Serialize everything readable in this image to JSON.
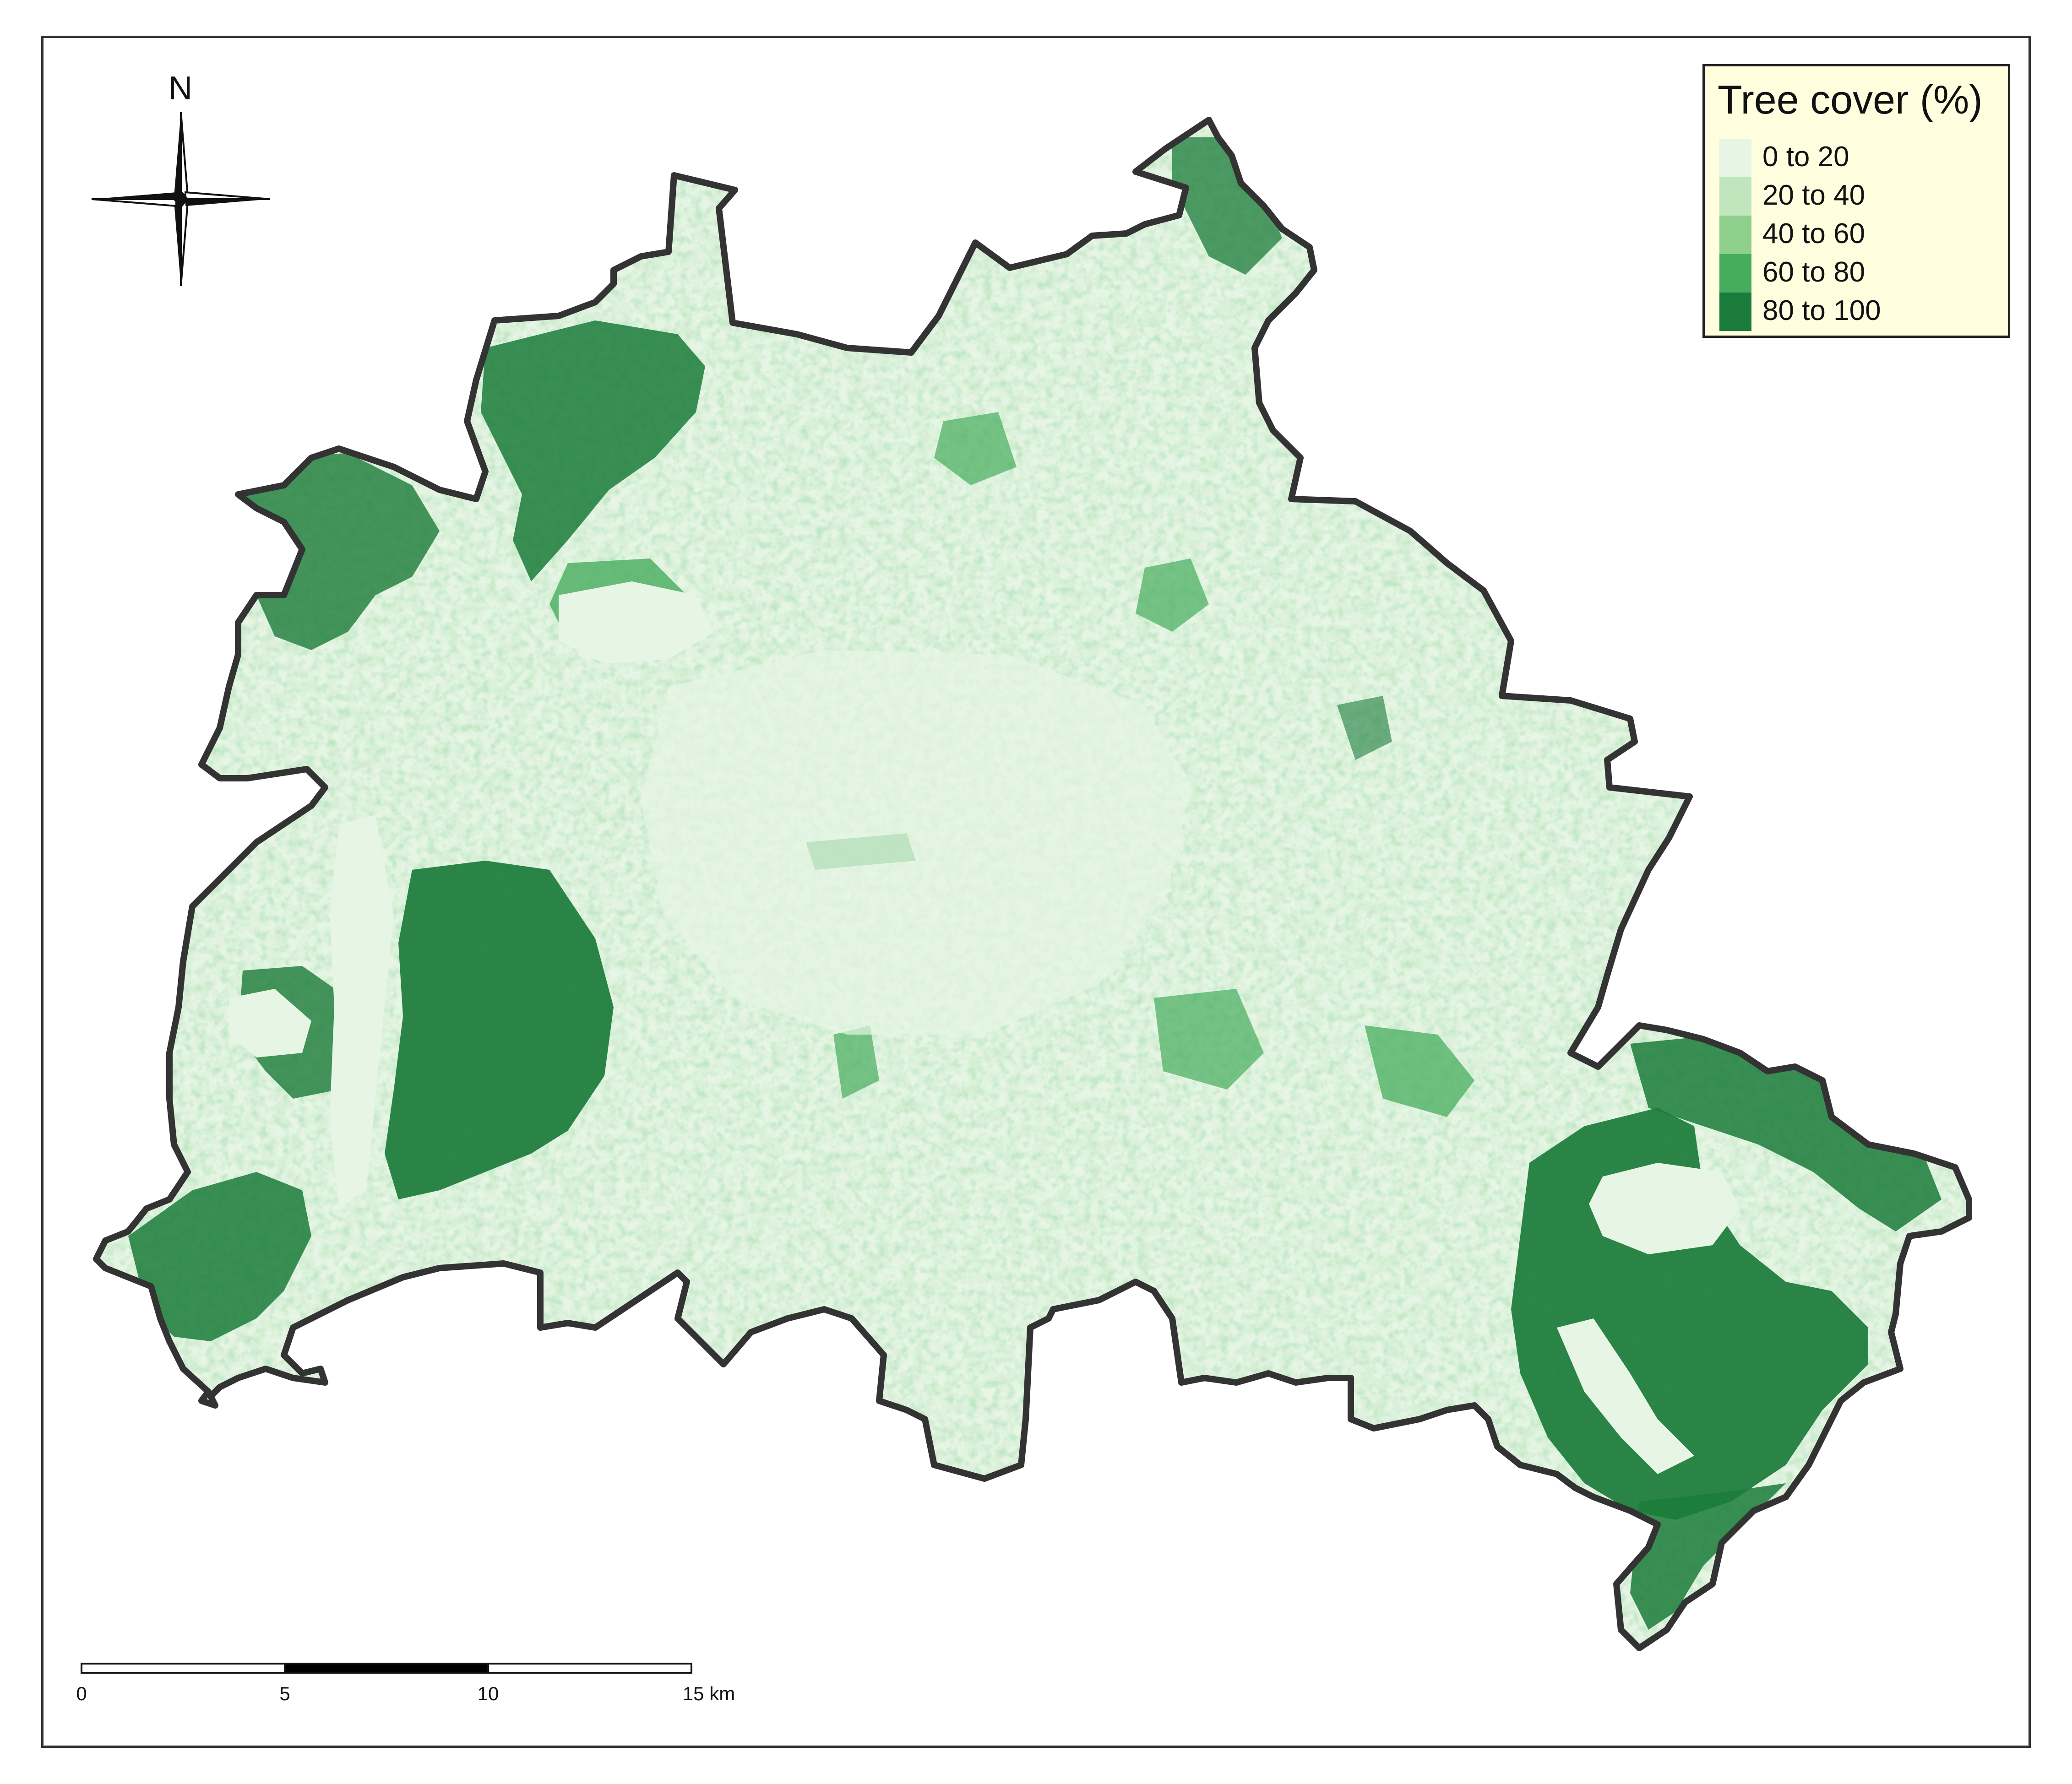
{
  "map": {
    "legend": {
      "title": "Tree cover (%)",
      "items": [
        {
          "label": "0 to 20",
          "color": "#e6f5e4"
        },
        {
          "label": "20 to 40",
          "color": "#c1e5bd"
        },
        {
          "label": "40 to 60",
          "color": "#8dcf8b"
        },
        {
          "label": "60 to 80",
          "color": "#47ad5e"
        },
        {
          "label": "80 to 100",
          "color": "#1b7b3a"
        }
      ]
    },
    "north_label": "N",
    "scale": {
      "ticks": [
        "0",
        "5",
        "10",
        "15 km"
      ]
    },
    "boundary_color": "#333333"
  }
}
